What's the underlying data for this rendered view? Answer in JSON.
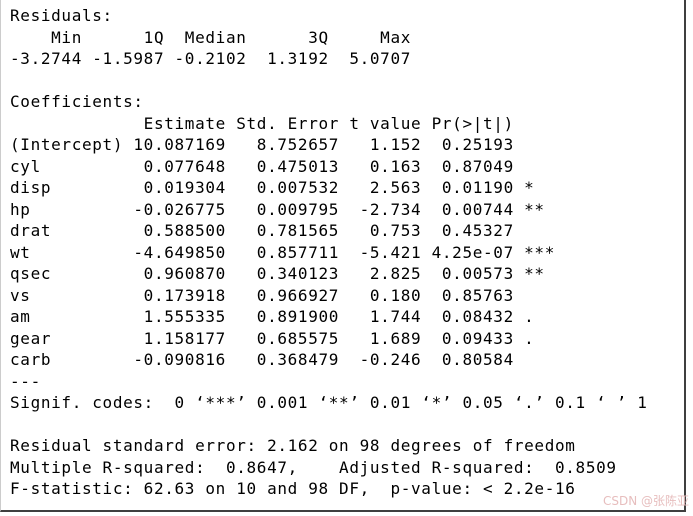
{
  "console": {
    "residuals": {
      "title": "Residuals:",
      "columns": [
        "Min",
        "1Q",
        "Median",
        "3Q",
        "Max"
      ],
      "values": [
        "-3.2744",
        "-1.5987",
        "-0.2102",
        "1.3192",
        "5.0707"
      ]
    },
    "coefficients": {
      "title": "Coefficients:",
      "columns": [
        "Estimate",
        "Std. Error",
        "t value",
        "Pr(>|t|)"
      ],
      "rows": [
        {
          "term": "(Intercept)",
          "estimate": "10.087169",
          "std_error": "8.752657",
          "t_value": "1.152",
          "p_value": "0.25193",
          "signif": ""
        },
        {
          "term": "cyl",
          "estimate": "0.077648",
          "std_error": "0.475013",
          "t_value": "0.163",
          "p_value": "0.87049",
          "signif": ""
        },
        {
          "term": "disp",
          "estimate": "0.019304",
          "std_error": "0.007532",
          "t_value": "2.563",
          "p_value": "0.01190",
          "signif": "*"
        },
        {
          "term": "hp",
          "estimate": "-0.026775",
          "std_error": "0.009795",
          "t_value": "-2.734",
          "p_value": "0.00744",
          "signif": "**"
        },
        {
          "term": "drat",
          "estimate": "0.588500",
          "std_error": "0.781565",
          "t_value": "0.753",
          "p_value": "0.45327",
          "signif": ""
        },
        {
          "term": "wt",
          "estimate": "-4.649850",
          "std_error": "0.857711",
          "t_value": "-5.421",
          "p_value": "4.25e-07",
          "signif": "***"
        },
        {
          "term": "qsec",
          "estimate": "0.960870",
          "std_error": "0.340123",
          "t_value": "2.825",
          "p_value": "0.00573",
          "signif": "**"
        },
        {
          "term": "vs",
          "estimate": "0.173918",
          "std_error": "0.966927",
          "t_value": "0.180",
          "p_value": "0.85763",
          "signif": ""
        },
        {
          "term": "am",
          "estimate": "1.555335",
          "std_error": "0.891900",
          "t_value": "1.744",
          "p_value": "0.08432",
          "signif": "."
        },
        {
          "term": "gear",
          "estimate": "1.158177",
          "std_error": "0.685575",
          "t_value": "1.689",
          "p_value": "0.09433",
          "signif": "."
        },
        {
          "term": "carb",
          "estimate": "-0.090816",
          "std_error": "0.368479",
          "t_value": "-0.246",
          "p_value": "0.80584",
          "signif": ""
        }
      ]
    },
    "separator": "---",
    "signif_codes": "Signif. codes:  0 ‘***’ 0.001 ‘**’ 0.01 ‘*’ 0.05 ‘.’ 0.1 ‘ ’ 1",
    "summary": {
      "residual_standard_error": "2.162",
      "residual_df": "98",
      "multiple_r_squared": "0.8647",
      "adjusted_r_squared": "0.8509",
      "f_statistic": "62.63",
      "f_df": "10 and 98",
      "p_value": "< 2.2e-16"
    },
    "summary_lines": [
      "Residual standard error: 2.162 on 98 degrees of freedom",
      "Multiple R-squared:  0.8647,    Adjusted R-squared:  0.8509",
      "F-statistic: 62.63 on 10 and 98 DF,  p-value: < 2.2e-16"
    ]
  },
  "watermark": {
    "text": "CSDN @张陈亚",
    "color": "#e7bebe"
  },
  "colors": {
    "background": "#ffffff",
    "text": "#000000",
    "pane_edge_dark": "#3f3f3f",
    "pane_edge_light": "#cccccc"
  }
}
